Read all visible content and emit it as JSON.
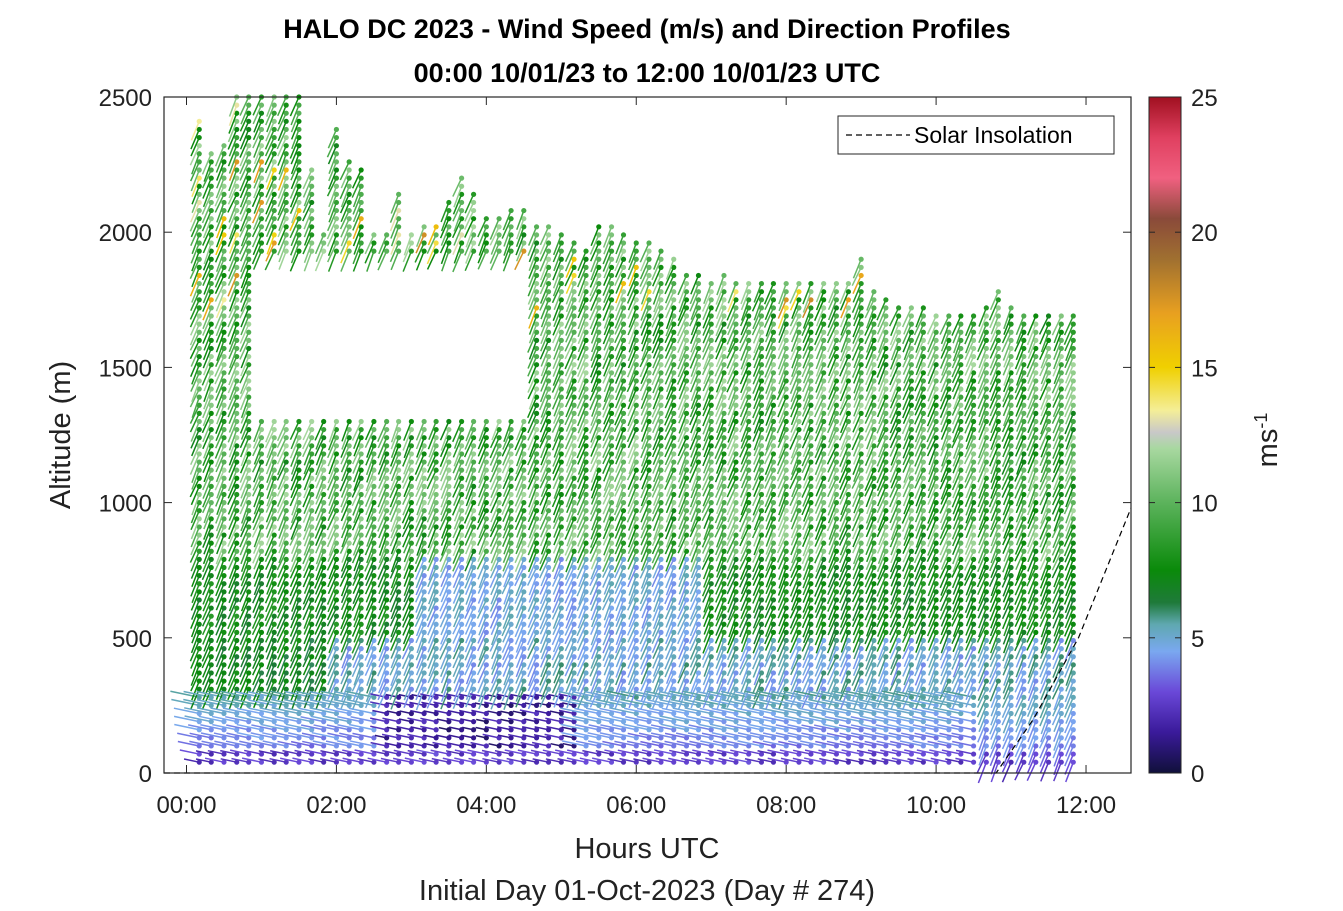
{
  "chart_data": {
    "type": "scatter",
    "title": "HALO DC 2023 - Wind Speed (m/s) and Direction Profiles",
    "subtitle": "00:00 10/01/23 to 12:00 10/01/23  UTC",
    "xlabel": "Hours UTC",
    "xlabel2": "Initial Day 01-Oct-2023 (Day # 274)",
    "ylabel": "Altitude (m)",
    "xlim": [
      -0.3,
      12.6
    ],
    "ylim": [
      0,
      2500
    ],
    "x_ticks": [
      0,
      2,
      4,
      6,
      8,
      10,
      12
    ],
    "x_tick_labels": [
      "00:00",
      "02:00",
      "04:00",
      "06:00",
      "08:00",
      "10:00",
      "12:00"
    ],
    "y_ticks": [
      0,
      500,
      1000,
      1500,
      2000,
      2500
    ],
    "y_tick_labels": [
      "0",
      "500",
      "1000",
      "1500",
      "2000",
      "2500"
    ],
    "colorbar": {
      "label": "ms",
      "label_superscript": "-1",
      "range": [
        0,
        25
      ],
      "ticks": [
        0,
        5,
        10,
        15,
        20,
        25
      ],
      "tick_labels": [
        "0",
        "5",
        "10",
        "15",
        "20",
        "25"
      ],
      "stops": [
        {
          "v": 0,
          "color": "#10103a"
        },
        {
          "v": 1.5,
          "color": "#3a1a9a"
        },
        {
          "v": 3,
          "color": "#6a48d8"
        },
        {
          "v": 4.5,
          "color": "#7aa8f0"
        },
        {
          "v": 5.5,
          "color": "#5fa8b0"
        },
        {
          "v": 6.3,
          "color": "#1f7a3a"
        },
        {
          "v": 7.5,
          "color": "#0a8a0a"
        },
        {
          "v": 10,
          "color": "#5cb35c"
        },
        {
          "v": 12,
          "color": "#a8d8a0"
        },
        {
          "v": 12.6,
          "color": "#c8c8c8"
        },
        {
          "v": 13.4,
          "color": "#f4ee98"
        },
        {
          "v": 15,
          "color": "#f0d000"
        },
        {
          "v": 17,
          "color": "#e8a020"
        },
        {
          "v": 19,
          "color": "#a07030"
        },
        {
          "v": 20.5,
          "color": "#8a4a3a"
        },
        {
          "v": 22,
          "color": "#f06080"
        },
        {
          "v": 23.5,
          "color": "#e04060"
        },
        {
          "v": 25,
          "color": "#a01020"
        }
      ]
    },
    "legend": {
      "entries": [
        "Solar Insolation"
      ],
      "placement": "top-right"
    },
    "solar_insolation": {
      "style": "dashed",
      "x": [
        -0.3,
        10.8,
        11.3,
        11.9,
        12.6
      ],
      "y": [
        0,
        0,
        200,
        500,
        980
      ]
    },
    "profile_times": [
      0.17,
      0.33,
      0.5,
      0.67,
      0.83,
      1.0,
      1.17,
      1.33,
      1.5,
      1.67,
      1.83,
      2.0,
      2.17,
      2.33,
      2.5,
      2.67,
      2.83,
      3.0,
      3.17,
      3.33,
      3.5,
      3.67,
      3.83,
      4.0,
      4.17,
      4.33,
      4.5,
      4.67,
      4.83,
      5.0,
      5.17,
      5.33,
      5.5,
      5.67,
      5.83,
      6.0,
      6.17,
      6.33,
      6.5,
      6.67,
      6.83,
      7.0,
      7.17,
      7.33,
      7.5,
      7.67,
      7.83,
      8.0,
      8.17,
      8.33,
      8.5,
      8.67,
      8.83,
      9.0,
      9.17,
      9.33,
      9.5,
      9.67,
      9.83,
      10.0,
      10.17,
      10.33,
      10.5,
      10.67,
      10.83,
      11.0,
      11.17,
      11.33,
      11.5,
      11.67,
      11.83
    ],
    "profile_top_altitude": [
      2410,
      2300,
      2320,
      2500,
      2500,
      2500,
      2500,
      2500,
      2500,
      2240,
      2000,
      2380,
      2280,
      2240,
      2000,
      2000,
      2150,
      2000,
      2040,
      2020,
      2120,
      2200,
      2140,
      2060,
      2060,
      2080,
      2080,
      2040,
      2020,
      2000,
      1960,
      1940,
      2040,
      2020,
      2000,
      1980,
      1960,
      1940,
      1900,
      1860,
      1850,
      1830,
      1840,
      1830,
      1830,
      1830,
      1830,
      1830,
      1830,
      1830,
      1830,
      1830,
      1830,
      1900,
      1780,
      1770,
      1740,
      1730,
      1730,
      1710,
      1700,
      1700,
      1700,
      1720,
      1790,
      1720,
      1710,
      1700,
      1700,
      1700,
      1700
    ],
    "data_gap": {
      "x_range": [
        1.0,
        4.6
      ],
      "alt_range": [
        1330,
        1900
      ]
    }
  }
}
